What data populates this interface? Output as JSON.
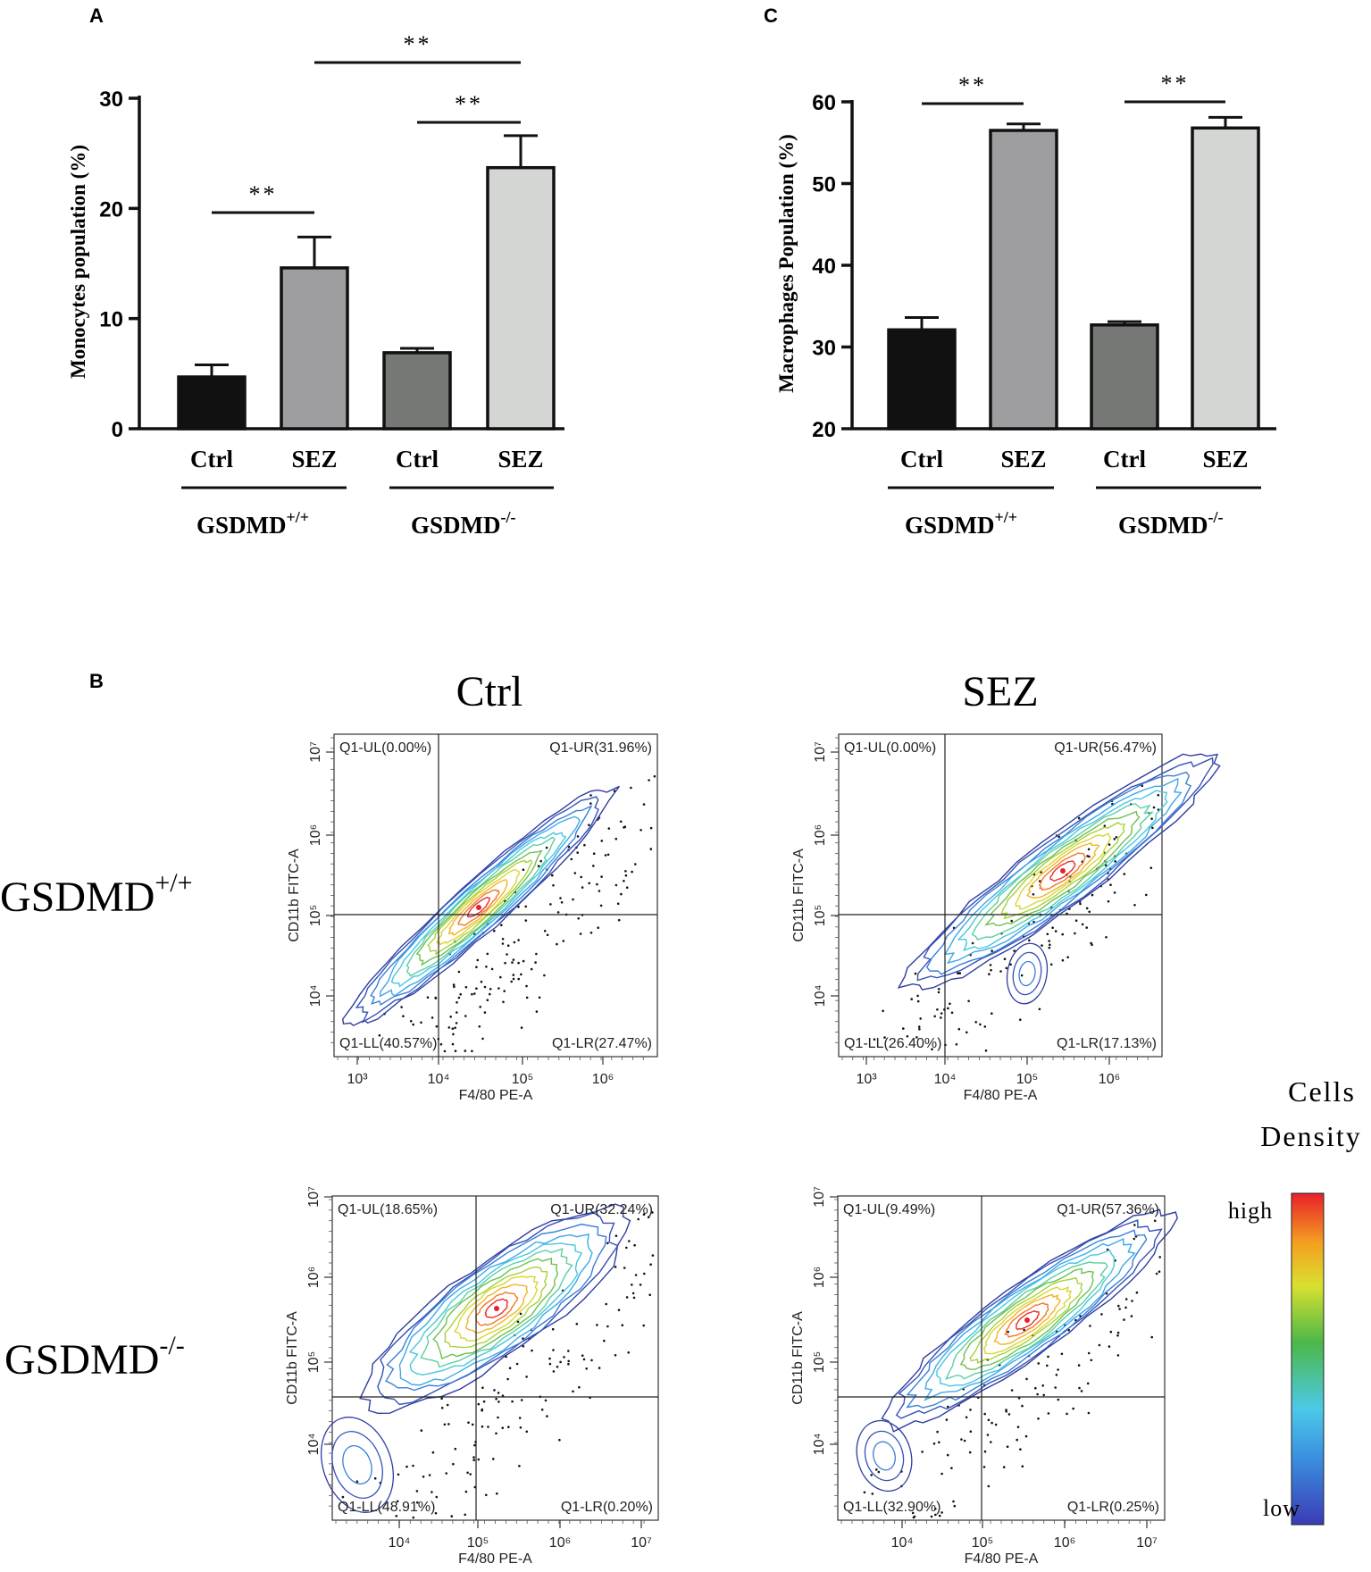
{
  "panel_labels": {
    "a": "A",
    "b": "B",
    "c": "C"
  },
  "groups": [
    {
      "base": "GSDMD",
      "sup": "+/+"
    },
    {
      "base": "GSDMD",
      "sup": "-/-"
    }
  ],
  "chart_data": [
    {
      "type": "bar",
      "panel": "A",
      "ylabel": "Monocytes population (%)",
      "ylim": [
        0,
        30
      ],
      "yticks": [
        "0",
        "10",
        "20",
        "30"
      ],
      "categories": [
        "Ctrl",
        "SEZ",
        "Ctrl",
        "SEZ"
      ],
      "values": [
        4.7,
        14.6,
        6.9,
        23.7
      ],
      "errors": [
        1.1,
        2.8,
        0.4,
        2.9
      ],
      "colors": [
        "#111111",
        "#9e9ea0",
        "#767876",
        "#d4d6d4"
      ],
      "significance": [
        {
          "label": "**",
          "from": 0,
          "to": 1
        },
        {
          "label": "**",
          "from": 2,
          "to": 3
        },
        {
          "label": "**",
          "from": 1,
          "to": 3
        }
      ]
    },
    {
      "type": "bar",
      "panel": "C",
      "ylabel": "Macrophages Population (%)",
      "ylim": [
        20,
        60
      ],
      "yticks": [
        "20",
        "30",
        "40",
        "50",
        "60"
      ],
      "categories": [
        "Ctrl",
        "SEZ",
        "Ctrl",
        "SEZ"
      ],
      "values": [
        32.1,
        56.5,
        32.7,
        56.8
      ],
      "errors": [
        1.5,
        0.8,
        0.4,
        1.3
      ],
      "colors": [
        "#111111",
        "#9e9ea0",
        "#767876",
        "#d4d6d4"
      ],
      "significance": [
        {
          "label": "**",
          "from": 0,
          "to": 1
        },
        {
          "label": "**",
          "from": 2,
          "to": 3
        }
      ]
    }
  ],
  "flow": {
    "col_titles": [
      "Ctrl",
      "SEZ"
    ],
    "x_axis_label": "F4/80 PE-A",
    "y_axis_label": "CD11b FITC-A",
    "plots": [
      {
        "id": "wt-ctrl",
        "x_ticks": [
          "10³",
          "10⁴",
          "10⁵",
          "10⁶"
        ],
        "y_ticks": [
          "10⁴",
          "10⁵",
          "10⁶",
          "10⁷"
        ],
        "UL": "Q1-UL(0.00%)",
        "UR": "Q1-UR(31.96%)",
        "LL": "Q1-LL(40.57%)",
        "LR": "Q1-LR(27.47%)"
      },
      {
        "id": "wt-sez",
        "x_ticks": [
          "10³",
          "10⁴",
          "10⁵",
          "10⁶"
        ],
        "y_ticks": [
          "10⁴",
          "10⁵",
          "10⁶",
          "10⁷"
        ],
        "UL": "Q1-UL(0.00%)",
        "UR": "Q1-UR(56.47%)",
        "LL": "Q1-LL(26.40%)",
        "LR": "Q1-LR(17.13%)"
      },
      {
        "id": "ko-ctrl",
        "x_ticks": [
          "10⁴",
          "10⁵",
          "10⁶",
          "10⁷"
        ],
        "y_ticks": [
          "10⁴",
          "10⁵",
          "10⁶",
          "10⁷"
        ],
        "UL": "Q1-UL(18.65%)",
        "UR": "Q1-UR(32.24%)",
        "LL": "Q1-LL(48.91%)",
        "LR": "Q1-LR(0.20%)"
      },
      {
        "id": "ko-sez",
        "x_ticks": [
          "10⁴",
          "10⁵",
          "10⁶",
          "10⁷"
        ],
        "y_ticks": [
          "10⁴",
          "10⁵",
          "10⁶",
          "10⁷"
        ],
        "UL": "Q1-UL(9.49%)",
        "UR": "Q1-UR(57.36%)",
        "LL": "Q1-LL(32.90%)",
        "LR": "Q1-LR(0.25%)"
      }
    ]
  },
  "colorbar": {
    "title_line1": "Cells",
    "title_line2": "Density",
    "high": "high",
    "low": "low"
  }
}
